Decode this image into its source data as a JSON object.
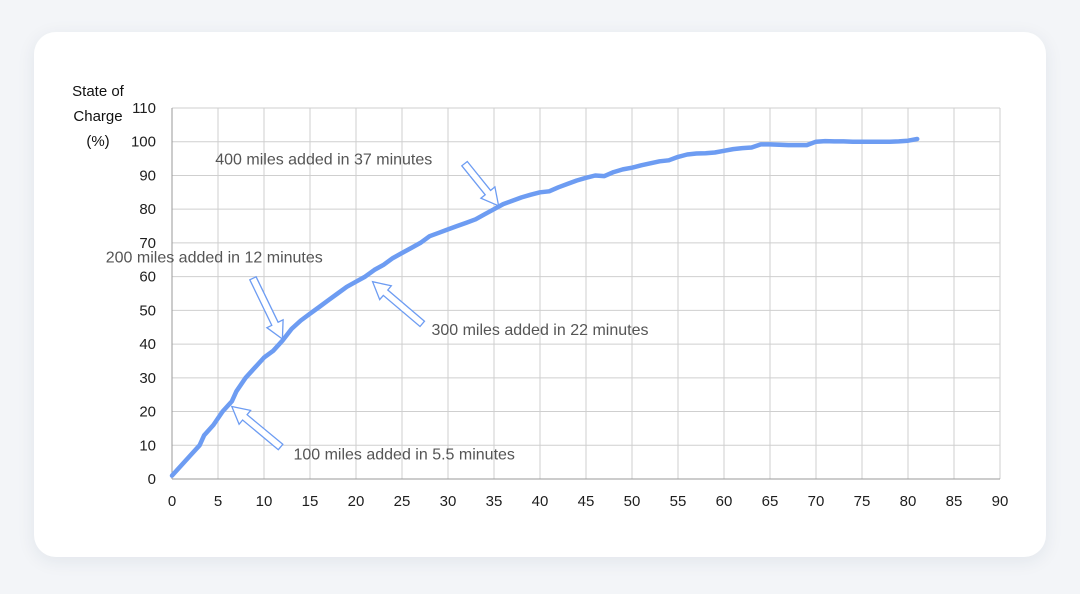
{
  "chart_data": {
    "type": "line",
    "ylabel": [
      "State of",
      "Charge",
      "(%)"
    ],
    "xlabel": "",
    "xlim": [
      0,
      90
    ],
    "ylim": [
      0,
      110
    ],
    "x_ticks": [
      0,
      5,
      10,
      15,
      20,
      25,
      30,
      35,
      40,
      45,
      50,
      55,
      60,
      65,
      70,
      75,
      80,
      85,
      90
    ],
    "y_ticks": [
      0,
      10,
      20,
      30,
      40,
      50,
      60,
      70,
      80,
      90,
      100,
      110
    ],
    "grid": true,
    "colors": {
      "line": "#6d9cf2",
      "arrow_fill": "#ffffff",
      "arrow_stroke": "#6d9cf2",
      "grid": "#cfcfcf",
      "axis": "#9a9a9a"
    },
    "series": [
      {
        "x": [
          0,
          1,
          2,
          3,
          3.5,
          4.5,
          5.5,
          6.5,
          7,
          8,
          9,
          10,
          11,
          12,
          13,
          14,
          15,
          16,
          17,
          18,
          19,
          20,
          21,
          22,
          23,
          24,
          25,
          26,
          27,
          28,
          29,
          30,
          31,
          32,
          33,
          34,
          35,
          36,
          37,
          38,
          39,
          40,
          41,
          42,
          43,
          44,
          45,
          46,
          47,
          48,
          49,
          50,
          51,
          52,
          53,
          54,
          55,
          56,
          57,
          58,
          59,
          60,
          61,
          62,
          63,
          64,
          65,
          66,
          67,
          68,
          69,
          70,
          71,
          72,
          73,
          74,
          75,
          76,
          77,
          78,
          79,
          80,
          81
        ],
        "y": [
          1,
          4,
          7,
          10,
          13,
          16,
          20,
          23,
          26,
          30,
          33,
          36,
          38,
          41,
          44.5,
          47,
          49,
          51,
          53,
          55,
          57,
          58.5,
          60,
          62,
          63.5,
          65.5,
          67,
          68.5,
          70,
          72,
          73,
          74,
          75,
          76,
          77,
          78.5,
          80,
          81.5,
          82.5,
          83.5,
          84.3,
          85,
          85.3,
          86.5,
          87.5,
          88.5,
          89.3,
          90,
          89.8,
          91,
          91.8,
          92.3,
          93,
          93.6,
          94.2,
          94.5,
          95.5,
          96.2,
          96.5,
          96.6,
          96.8,
          97.3,
          97.8,
          98.1,
          98.3,
          99.2,
          99.2,
          99.1,
          99,
          99,
          99,
          100,
          100.2,
          100.1,
          100.1,
          100,
          100,
          100,
          100,
          100,
          100.1,
          100.3,
          100.8
        ]
      }
    ],
    "annotations": [
      {
        "text": "100 miles added in 5.5 minutes",
        "text_x": 13.2,
        "text_y": 7.5,
        "arrow_from": [
          11.8,
          9.5
        ],
        "arrow_to": [
          6.5,
          21.5
        ]
      },
      {
        "text": "200 miles added in 12 minutes",
        "text_x": -7.2,
        "text_y": 66,
        "arrow_from": [
          8.8,
          59.5
        ],
        "arrow_to": [
          12,
          41.5
        ]
      },
      {
        "text": "300 miles added in 22 minutes",
        "text_x": 28.2,
        "text_y": 44.5,
        "arrow_from": [
          27.2,
          46
        ],
        "arrow_to": [
          21.8,
          58.5
        ]
      },
      {
        "text": "400 miles added in 37 minutes",
        "text_x": 4.7,
        "text_y": 95,
        "arrow_from": [
          31.8,
          93.5
        ],
        "arrow_to": [
          35.5,
          81
        ]
      }
    ]
  }
}
